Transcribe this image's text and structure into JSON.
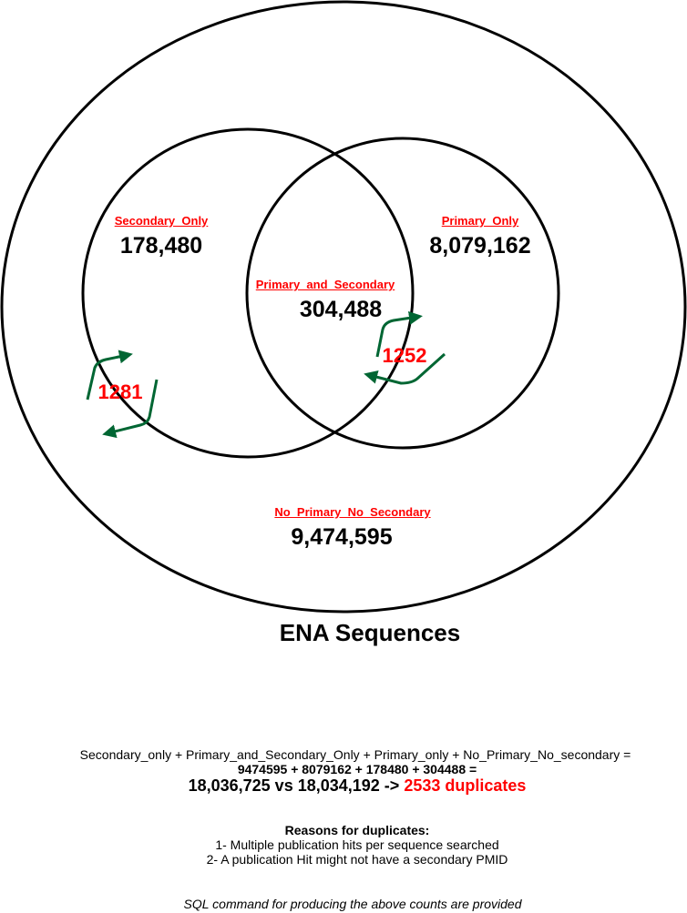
{
  "regions": {
    "secondary_only": {
      "label": "Secondary_Only",
      "count": "178,480"
    },
    "primary_and_secondary": {
      "label": "Primary_and_Secondary",
      "count": "304,488"
    },
    "primary_only": {
      "label": "Primary_Only",
      "count": "8,079,162"
    },
    "no_primary_no_secondary": {
      "label": "No_Primary_No_Secondary",
      "count": "9,474,595"
    }
  },
  "exchanges": {
    "left": {
      "value": "1281",
      "color": "#006633"
    },
    "right": {
      "value": "1252",
      "color": "#006633"
    }
  },
  "caption": "ENA Sequences",
  "formula": {
    "line1": "Secondary_only + Primary_and_Secondary_Only + Primary_only + No_Primary_No_secondary =",
    "line2": "9474595 + 8079162 + 178480 + 304488 =",
    "comparison": "18,036,725 vs 18,034,192 ->",
    "duplicates": "2533 duplicates"
  },
  "reasons": {
    "title": "Reasons for duplicates:",
    "items": [
      "1- Multiple publication hits per sequence searched",
      "2- A publication Hit might not have a secondary PMID"
    ]
  },
  "note": "SQL command for producing the above counts are provided",
  "colors": {
    "highlight": "#ff0000",
    "arrow": "#006633",
    "stroke": "#000000"
  }
}
